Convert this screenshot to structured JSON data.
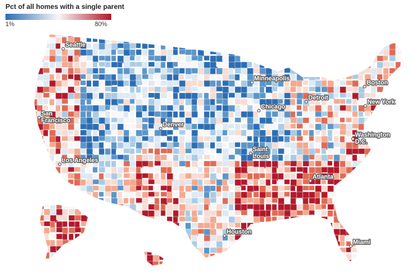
{
  "legend": {
    "title": "Pct of all homes with a single parent",
    "min_label": "1%",
    "max_label": "80%",
    "min_color": "#2c6db3",
    "mid_color": "#f7f7f7",
    "max_color": "#b2182b"
  },
  "cities": [
    {
      "id": "seattle",
      "name": "Seattle",
      "lines": [
        "Seattle"
      ]
    },
    {
      "id": "minneapolis",
      "name": "Minneapolis",
      "lines": [
        "Minneapolis"
      ]
    },
    {
      "id": "boston",
      "name": "Boston",
      "lines": [
        "Boston"
      ]
    },
    {
      "id": "detroit",
      "name": "Detroit",
      "lines": [
        "Detroit"
      ]
    },
    {
      "id": "new-york",
      "name": "New York",
      "lines": [
        "New York"
      ]
    },
    {
      "id": "san-francisco",
      "name": "San Francisco",
      "lines": [
        "San",
        "Francisco"
      ]
    },
    {
      "id": "chicago",
      "name": "Chicago",
      "lines": [
        "Chicago"
      ]
    },
    {
      "id": "denver",
      "name": "Denver",
      "lines": [
        "Denver"
      ]
    },
    {
      "id": "washington-dc",
      "name": "Washington DC",
      "lines": [
        "Washington",
        "D.C."
      ]
    },
    {
      "id": "saint-louis",
      "name": "Saint Louis",
      "lines": [
        "Saint",
        "Louis"
      ]
    },
    {
      "id": "los-angeles",
      "name": "Los Angeles",
      "lines": [
        "Los Angeles"
      ]
    },
    {
      "id": "atlanta",
      "name": "Atlanta",
      "lines": [
        "Atlanta"
      ]
    },
    {
      "id": "houston",
      "name": "Houston",
      "lines": [
        "Houston"
      ]
    },
    {
      "id": "miami",
      "name": "Miami",
      "lines": [
        "Miami"
      ]
    }
  ]
}
